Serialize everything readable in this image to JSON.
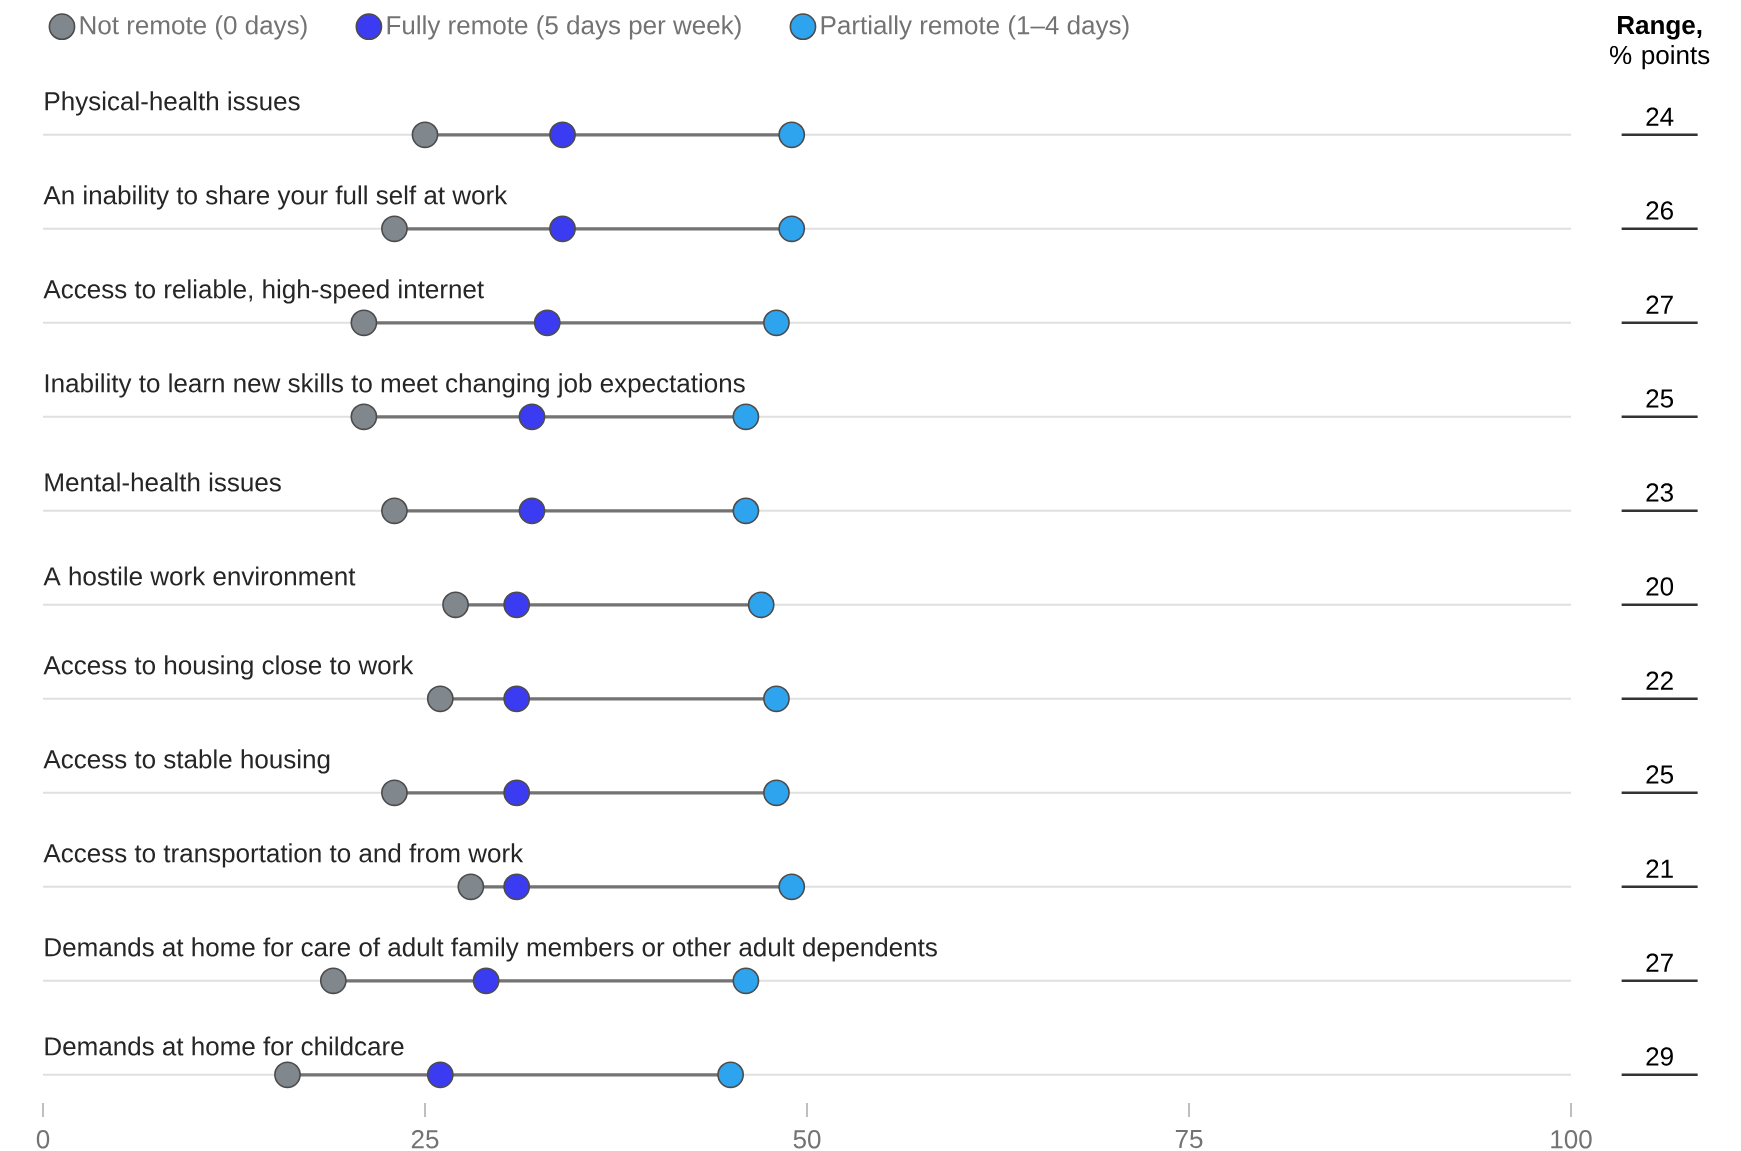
{
  "chart_data": {
    "type": "scatter",
    "orientation": "horizontal",
    "categories": [
      "Physical-health issues",
      "An inability to share your full self at work",
      "Access to reliable, high-speed internet",
      "Inability to learn new skills to meet changing job expectations",
      "Mental-health issues",
      "A hostile work environment",
      "Access to housing close to work",
      "Access to stable housing",
      "Access to transportation to and from work",
      "Demands at home for care of adult family members or other adult dependents",
      "Demands at home for childcare"
    ],
    "series": [
      {
        "name": "Not remote (0 days)",
        "color": "#80878d",
        "values": [
          25,
          23,
          21,
          21,
          23,
          27,
          26,
          23,
          28,
          19,
          16
        ]
      },
      {
        "name": "Fully remote (5 days per week)",
        "color": "#3b3bf2",
        "values": [
          34,
          34,
          33,
          32,
          32,
          31,
          31,
          31,
          31,
          29,
          26
        ]
      },
      {
        "name": "Partially remote (1–4 days)",
        "color": "#2fa4ee",
        "values": [
          49,
          49,
          48,
          46,
          46,
          47,
          48,
          48,
          49,
          46,
          45
        ]
      }
    ],
    "xlim": [
      0,
      100
    ],
    "xticks": [
      0,
      25,
      50,
      75,
      100
    ],
    "grid": "y",
    "legend": "top left",
    "marker": "circle",
    "annotations": [
      "**Range,** % points",
      "24",
      "26",
      "27",
      "25",
      "23",
      "20",
      "22",
      "25",
      "21",
      "27",
      "29"
    ]
  }
}
